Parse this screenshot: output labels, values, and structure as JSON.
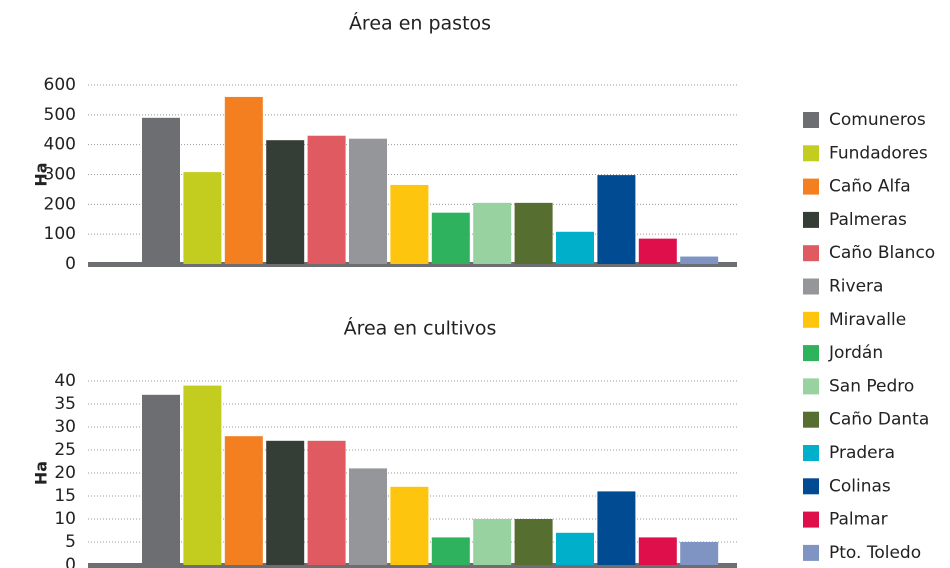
{
  "legend": [
    {
      "name": "Comuneros",
      "color": "#6d6e71"
    },
    {
      "name": "Fundadores",
      "color": "#c3cd20"
    },
    {
      "name": "Caño Alfa",
      "color": "#f47f20"
    },
    {
      "name": "Palmeras",
      "color": "#343d36"
    },
    {
      "name": "Caño Blanco",
      "color": "#e05a62"
    },
    {
      "name": "Rivera",
      "color": "#959699"
    },
    {
      "name": "Miravalle",
      "color": "#fec50e"
    },
    {
      "name": "Jordán",
      "color": "#2eb25e"
    },
    {
      "name": "San Pedro",
      "color": "#98d2a0"
    },
    {
      "name": "Caño Danta",
      "color": "#566f30"
    },
    {
      "name": "Pradera",
      "color": "#00afc9"
    },
    {
      "name": "Colinas",
      "color": "#004b91"
    },
    {
      "name": "Palmar",
      "color": "#de0f4b"
    },
    {
      "name": "Pto. Toledo",
      "color": "#8094c4"
    }
  ],
  "chart_data": [
    {
      "type": "bar",
      "title": "Área en pastos",
      "y_label": "Ha",
      "values": [
        490,
        308,
        560,
        415,
        430,
        420,
        265,
        172,
        205,
        205,
        108,
        298,
        85,
        25
      ],
      "ylim": [
        0,
        600
      ],
      "yticks": [
        0,
        100,
        200,
        300,
        400,
        500,
        600
      ],
      "grid": true
    },
    {
      "type": "bar",
      "title": "Área en cultivos",
      "y_label": "Ha",
      "values": [
        37,
        39,
        28,
        27,
        27,
        21,
        17,
        6,
        10,
        10,
        7,
        16,
        6,
        5
      ],
      "ylim": [
        0,
        40
      ],
      "yticks": [
        0,
        5,
        10,
        15,
        20,
        25,
        30,
        35,
        40
      ],
      "grid": true
    }
  ]
}
